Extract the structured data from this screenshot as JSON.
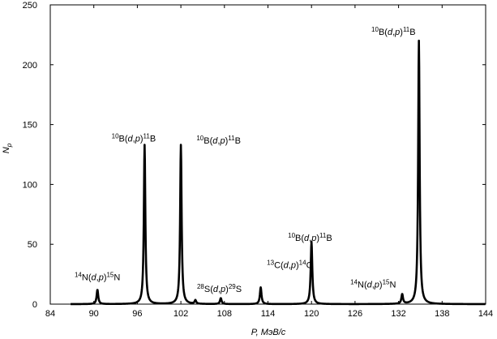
{
  "chart_data": {
    "type": "line",
    "title": "",
    "xlabel": "P, МэВ/с",
    "ylabel": "Np",
    "xlim": [
      84,
      144
    ],
    "ylim": [
      0,
      250
    ],
    "x_ticks": [
      "84",
      "90",
      "96",
      "102",
      "108",
      "114",
      "120",
      "126",
      "132",
      "138",
      "144"
    ],
    "y_ticks": [
      "0",
      "50",
      "100",
      "150",
      "200",
      "250"
    ],
    "grid": "none",
    "legend": "none",
    "line_color": "#000000",
    "peaks": [
      {
        "x": 90.5,
        "y": 12,
        "label": "¹⁴N(d,p)¹⁵N"
      },
      {
        "x": 97.0,
        "y": 133,
        "label": "¹⁰B(d,p)¹¹B"
      },
      {
        "x": 102.0,
        "y": 133,
        "label": "¹⁰B(d,p)¹¹B"
      },
      {
        "x": 104.0,
        "y": 3,
        "label": ""
      },
      {
        "x": 107.5,
        "y": 5,
        "label": "²⁸S(d,p)²⁹S"
      },
      {
        "x": 113.0,
        "y": 14,
        "label": "¹³C(d,p)¹⁴C"
      },
      {
        "x": 120.0,
        "y": 52,
        "label": "¹⁰B(d,p)¹¹B"
      },
      {
        "x": 132.5,
        "y": 8,
        "label": "¹⁴N(d,p)¹⁵N"
      },
      {
        "x": 134.8,
        "y": 220,
        "label": "¹⁰B(d,p)¹¹B"
      }
    ],
    "annotations": [
      {
        "pre": "14",
        "a": "N(",
        "r": "d",
        "c": ",",
        "p": "p",
        "d": ")",
        "post": "15",
        "b": "N",
        "ax": 90.5,
        "ay": 20
      },
      {
        "pre": "10",
        "a": "B(",
        "r": "d",
        "c": ",",
        "p": "p",
        "d": ")",
        "post": "11",
        "b": "B",
        "ax": 95.5,
        "ay": 136
      },
      {
        "pre": "10",
        "a": "B(",
        "r": "d",
        "c": ",",
        "p": "p",
        "d": ")",
        "post": "11",
        "b": "B",
        "ax": 107.2,
        "ay": 134
      },
      {
        "pre": "28",
        "a": "S(",
        "r": "d",
        "c": ",",
        "p": "p",
        "d": ")",
        "post": "29",
        "b": "S",
        "ax": 107.3,
        "ay": 10
      },
      {
        "pre": "13",
        "a": "C(",
        "r": "d",
        "c": ",",
        "p": "p",
        "d": ")",
        "post": "14",
        "b": "C",
        "ax": 117.0,
        "ay": 30
      },
      {
        "pre": "10",
        "a": "B(",
        "r": "d",
        "c": ",",
        "p": "p",
        "d": ")",
        "post": "11",
        "b": "B",
        "ax": 119.8,
        "ay": 53
      },
      {
        "pre": "14",
        "a": "N(",
        "r": "d",
        "c": ",",
        "p": "p",
        "d": ")",
        "post": "15",
        "b": "N",
        "ax": 128.5,
        "ay": 14
      },
      {
        "pre": "10",
        "a": "B(",
        "r": "d",
        "c": ",",
        "p": "p",
        "d": ")",
        "post": "11",
        "b": "B",
        "ax": 131.3,
        "ay": 225
      }
    ]
  }
}
